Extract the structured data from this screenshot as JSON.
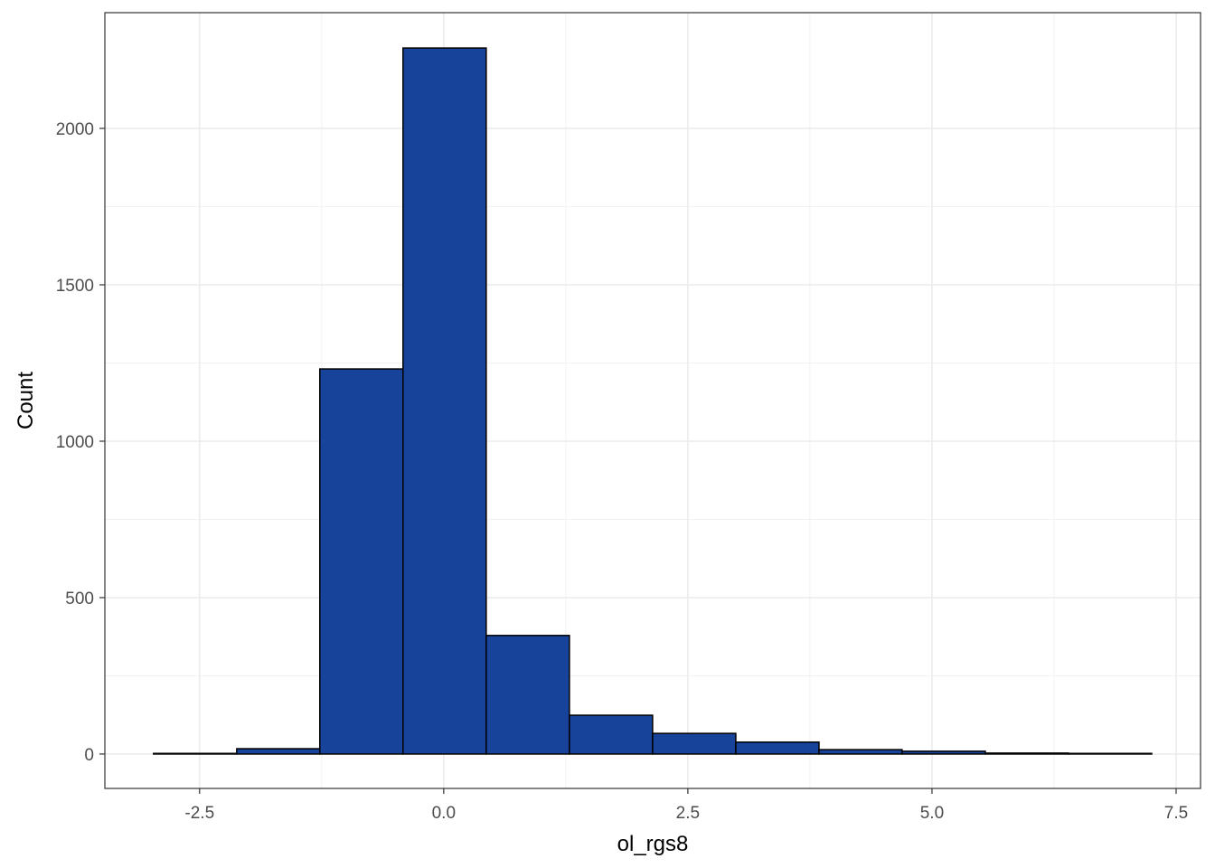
{
  "chart_data": {
    "type": "histogram",
    "x_label": "ol_rgs8",
    "y_label": "Count",
    "bins": [
      -2.972,
      -2.12,
      -1.269,
      -0.417,
      0.435,
      1.287,
      2.139,
      2.991,
      3.843,
      4.694,
      5.546,
      6.398,
      7.25
    ],
    "values": [
      2,
      17,
      1231,
      2257,
      379,
      124,
      66,
      38,
      14,
      9,
      3,
      2
    ],
    "color": "#17449a",
    "edge_color": "#000000",
    "xlim": [
      -3.47,
      7.75
    ],
    "xticks": [
      {
        "value": -2.5,
        "label": "-2.5"
      },
      {
        "value": 0,
        "label": "0.0"
      },
      {
        "value": 2.5,
        "label": "2.5"
      },
      {
        "value": 5,
        "label": "5.0"
      },
      {
        "value": 7.5,
        "label": "7.5"
      }
    ],
    "ylim": [
      -110,
      2370
    ],
    "yticks": [
      0,
      500,
      1000,
      1500,
      2000
    ],
    "grid": true
  }
}
